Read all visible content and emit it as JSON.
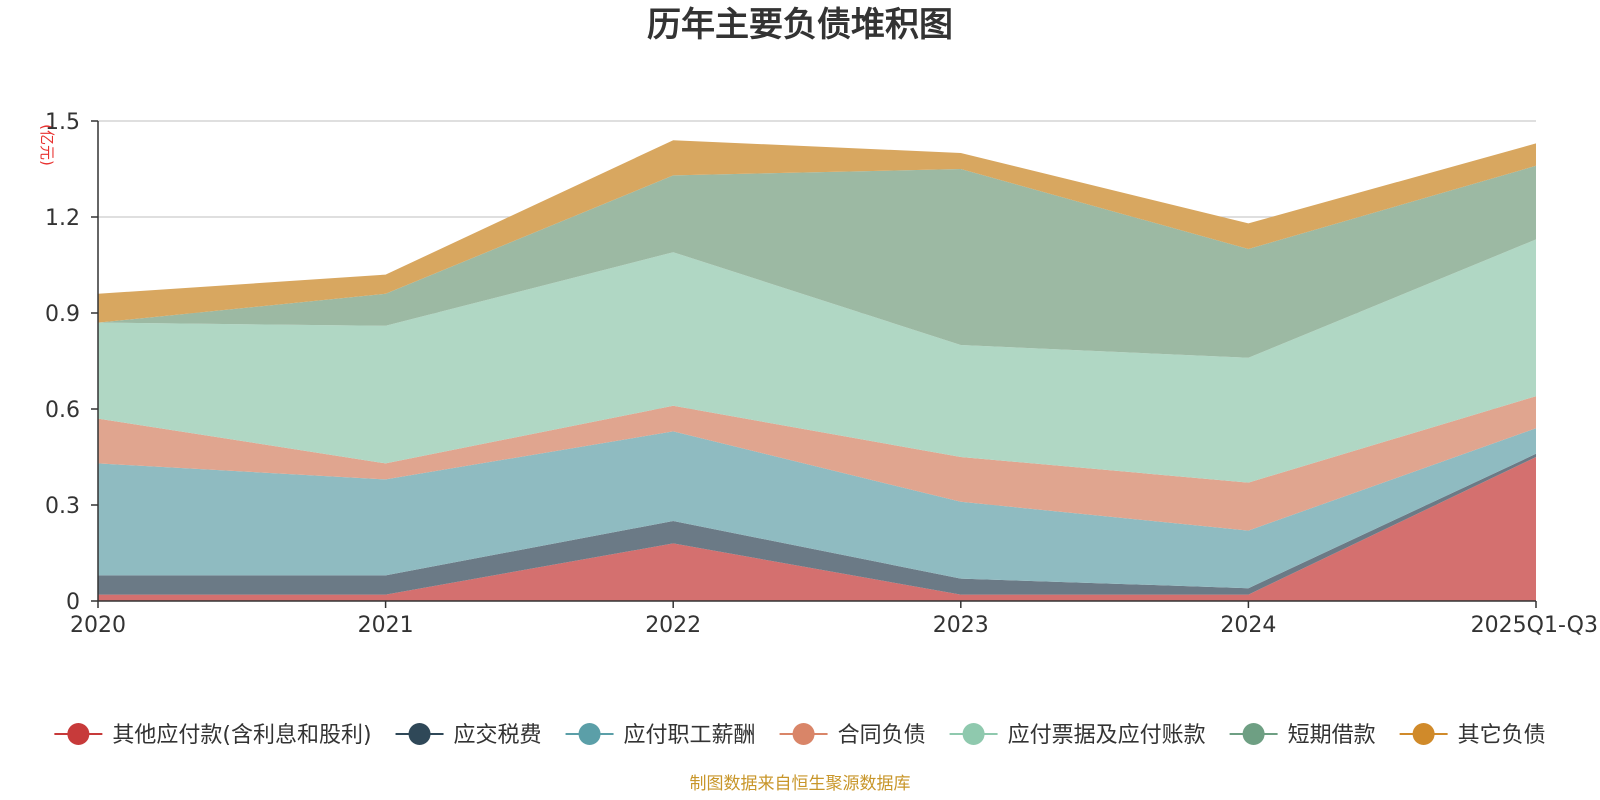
{
  "chart_data": {
    "type": "area",
    "stacked": true,
    "title": "历年主要负债堆积图",
    "ylabel": "(亿元)",
    "xlabel": "",
    "categories": [
      "2020",
      "2021",
      "2022",
      "2023",
      "2024",
      "2025Q1-Q3"
    ],
    "ylim": [
      0,
      1.5
    ],
    "yticks": [
      "0",
      "0.3",
      "0.6",
      "0.9",
      "1.2",
      "1.5"
    ],
    "ytick_values": [
      0,
      0.3,
      0.6,
      0.9,
      1.2,
      1.5
    ],
    "grid": true,
    "legend_position": "bottom",
    "series": [
      {
        "name": "其他应付款(含利息和股利)",
        "color": "#d4706f",
        "legend_color": "#c73a3a",
        "values": [
          0.02,
          0.02,
          0.18,
          0.02,
          0.02,
          0.45
        ]
      },
      {
        "name": "应交税费",
        "color": "#6b7a86",
        "legend_color": "#2f4858",
        "values": [
          0.06,
          0.06,
          0.07,
          0.05,
          0.02,
          0.01
        ]
      },
      {
        "name": "应付职工薪酬",
        "color": "#8fbbc1",
        "legend_color": "#5b9fa8",
        "values": [
          0.35,
          0.3,
          0.28,
          0.24,
          0.18,
          0.08
        ]
      },
      {
        "name": "合同负债",
        "color": "#e0a58f",
        "legend_color": "#d98568",
        "values": [
          0.14,
          0.05,
          0.08,
          0.14,
          0.15,
          0.1
        ]
      },
      {
        "name": "应付票据及应付账款",
        "color": "#b0d7c4",
        "legend_color": "#8fc9ae",
        "values": [
          0.3,
          0.43,
          0.48,
          0.35,
          0.39,
          0.49
        ]
      },
      {
        "name": "短期借款",
        "color": "#9cb9a3",
        "legend_color": "#6e9f83",
        "values": [
          0.0,
          0.1,
          0.24,
          0.55,
          0.34,
          0.23
        ]
      },
      {
        "name": "其它负债",
        "color": "#d8a760",
        "legend_color": "#d08a2a",
        "values": [
          0.09,
          0.06,
          0.11,
          0.05,
          0.08,
          0.07
        ]
      }
    ],
    "source_note": "制图数据来自恒生聚源数据库"
  }
}
